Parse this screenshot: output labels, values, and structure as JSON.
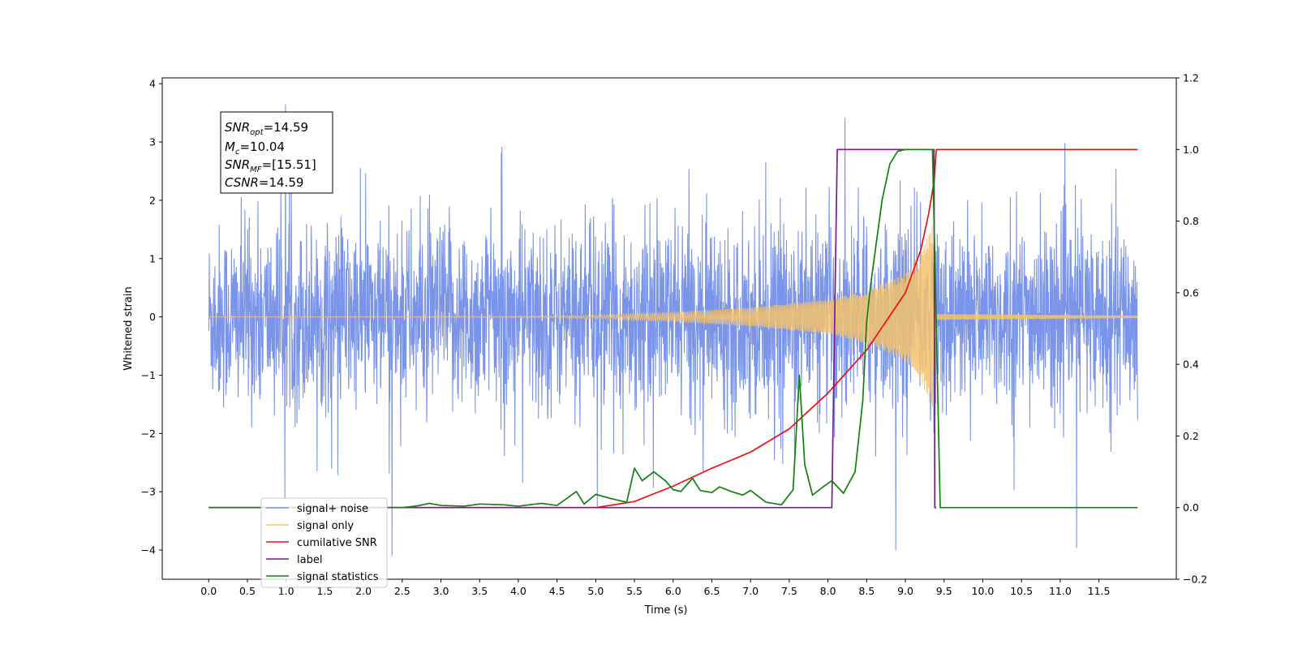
{
  "chart_data": {
    "type": "line",
    "title": "",
    "xlabel": "Time (s)",
    "ylabel": "Whitened strain",
    "xlim": [
      -0.6,
      12.5
    ],
    "ylim": [
      -4.5,
      4.1
    ],
    "y2lim": [
      -0.2,
      1.2
    ],
    "x_ticks": [
      "0.0",
      "0.5",
      "1.0",
      "1.5",
      "2.0",
      "2.5",
      "3.0",
      "3.5",
      "4.0",
      "4.5",
      "5.0",
      "5.5",
      "6.0",
      "6.5",
      "7.0",
      "7.5",
      "8.0",
      "8.5",
      "9.0",
      "9.5",
      "10.0",
      "10.5",
      "11.0",
      "11.5"
    ],
    "y_ticks": [
      "4",
      "3",
      "2",
      "1",
      "0",
      "−1",
      "−2",
      "−3",
      "−4"
    ],
    "y2_ticks": [
      "1.2",
      "1.0",
      "0.8",
      "0.6",
      "0.4",
      "0.2",
      "0.0",
      "−0.2"
    ],
    "grid": false,
    "legend_location": "lower-left",
    "annotation": {
      "snr_opt": {
        "main": "SNR",
        "sub": "opt",
        "value": "=14.59"
      },
      "mc": {
        "main": "M",
        "sub": "c",
        "value": "=10.04"
      },
      "snr_mf": {
        "main": "SNR",
        "sub": "MF",
        "value": "=[15.51]"
      },
      "csnr": {
        "main": "CSNR",
        "sub": "",
        "value": "=14.59"
      }
    },
    "series": [
      {
        "name": "signal+ noise",
        "axis": "left",
        "color": "#7994e8",
        "kind": "noise",
        "x_range": [
          0.0,
          12.0
        ],
        "band_core": [
          -1.8,
          1.9
        ],
        "extremes": [
          -4.1,
          3.7
        ]
      },
      {
        "name": "signal only",
        "axis": "left",
        "color": "#f5c26b",
        "kind": "chirp",
        "x_range": [
          0.0,
          12.0
        ],
        "envelope_points": [
          [
            0.0,
            0.0
          ],
          [
            4.0,
            0.01
          ],
          [
            5.0,
            0.03
          ],
          [
            6.0,
            0.08
          ],
          [
            7.0,
            0.16
          ],
          [
            8.0,
            0.3
          ],
          [
            8.5,
            0.45
          ],
          [
            9.0,
            0.75
          ],
          [
            9.2,
            1.1
          ],
          [
            9.35,
            1.6
          ],
          [
            9.4,
            0.05
          ],
          [
            12.0,
            0.02
          ]
        ]
      },
      {
        "name": "cumilative SNR",
        "axis": "right",
        "color": "#ee1111",
        "points": [
          [
            0.0,
            0.0
          ],
          [
            5.0,
            0.0
          ],
          [
            5.5,
            0.017
          ],
          [
            6.0,
            0.06
          ],
          [
            6.5,
            0.11
          ],
          [
            7.0,
            0.155
          ],
          [
            7.5,
            0.22
          ],
          [
            8.0,
            0.32
          ],
          [
            8.5,
            0.44
          ],
          [
            9.0,
            0.6
          ],
          [
            9.2,
            0.72
          ],
          [
            9.3,
            0.82
          ],
          [
            9.37,
            0.91
          ],
          [
            9.4,
            1.0
          ],
          [
            12.0,
            1.0
          ]
        ]
      },
      {
        "name": "label",
        "axis": "right",
        "color": "#7a1a8e",
        "points": [
          [
            0.0,
            0.0
          ],
          [
            8.05,
            0.0
          ],
          [
            8.12,
            1.0
          ],
          [
            9.37,
            1.0
          ],
          [
            9.38,
            0.0
          ],
          [
            9.4,
            0.0
          ]
        ]
      },
      {
        "name": "signal statistics",
        "axis": "right",
        "color": "#108010",
        "points": [
          [
            0.0,
            0.0
          ],
          [
            2.5,
            0.0
          ],
          [
            2.7,
            0.005
          ],
          [
            2.85,
            0.012
          ],
          [
            3.0,
            0.006
          ],
          [
            3.3,
            0.004
          ],
          [
            3.5,
            0.01
          ],
          [
            3.8,
            0.008
          ],
          [
            4.0,
            0.004
          ],
          [
            4.3,
            0.012
          ],
          [
            4.5,
            0.006
          ],
          [
            4.75,
            0.045
          ],
          [
            4.85,
            0.01
          ],
          [
            5.0,
            0.037
          ],
          [
            5.2,
            0.025
          ],
          [
            5.4,
            0.015
          ],
          [
            5.5,
            0.11
          ],
          [
            5.6,
            0.075
          ],
          [
            5.75,
            0.1
          ],
          [
            5.9,
            0.075
          ],
          [
            6.0,
            0.05
          ],
          [
            6.1,
            0.045
          ],
          [
            6.25,
            0.082
          ],
          [
            6.35,
            0.048
          ],
          [
            6.5,
            0.042
          ],
          [
            6.6,
            0.058
          ],
          [
            6.75,
            0.045
          ],
          [
            6.9,
            0.035
          ],
          [
            7.0,
            0.048
          ],
          [
            7.2,
            0.015
          ],
          [
            7.4,
            0.008
          ],
          [
            7.55,
            0.05
          ],
          [
            7.63,
            0.37
          ],
          [
            7.7,
            0.12
          ],
          [
            7.8,
            0.035
          ],
          [
            7.95,
            0.06
          ],
          [
            8.05,
            0.075
          ],
          [
            8.2,
            0.04
          ],
          [
            8.35,
            0.1
          ],
          [
            8.45,
            0.3
          ],
          [
            8.5,
            0.52
          ],
          [
            8.55,
            0.62
          ],
          [
            8.6,
            0.7
          ],
          [
            8.7,
            0.86
          ],
          [
            8.8,
            0.96
          ],
          [
            8.9,
            0.995
          ],
          [
            9.0,
            1.0
          ],
          [
            9.35,
            1.0
          ],
          [
            9.45,
            0.0
          ],
          [
            12.0,
            0.0
          ]
        ]
      }
    ]
  }
}
